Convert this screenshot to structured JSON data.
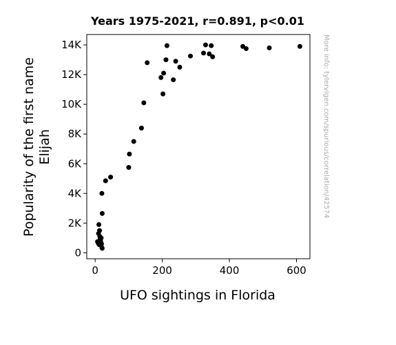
{
  "chart_data": {
    "type": "scatter",
    "title": "Years 1975-2021, r=0.891, p<0.01",
    "xlabel": "UFO sightings in Florida",
    "ylabel_lines": [
      "Popularity of the first name",
      "Elijah"
    ],
    "side_note": "More info: tylervigen.com/spurious/correlation/42574",
    "xlim": [
      -25,
      640
    ],
    "ylim": [
      -400,
      14700
    ],
    "xticks": [
      0,
      200,
      400,
      600
    ],
    "xtick_labels": [
      "0",
      "200",
      "400",
      "600"
    ],
    "yticks": [
      0,
      2000,
      4000,
      6000,
      8000,
      10000,
      12000,
      14000
    ],
    "ytick_labels": [
      "0",
      "2K",
      "4K",
      "6K",
      "8K",
      "10K",
      "12K",
      "14K"
    ],
    "marker_color": "#000000",
    "grid": false,
    "points": [
      {
        "x": 7,
        "y": 750
      },
      {
        "x": 9,
        "y": 650
      },
      {
        "x": 10,
        "y": 1300
      },
      {
        "x": 11,
        "y": 1900
      },
      {
        "x": 12,
        "y": 550
      },
      {
        "x": 13,
        "y": 1500
      },
      {
        "x": 14,
        "y": 1100
      },
      {
        "x": 15,
        "y": 950
      },
      {
        "x": 16,
        "y": 800
      },
      {
        "x": 17,
        "y": 700
      },
      {
        "x": 18,
        "y": 1000
      },
      {
        "x": 19,
        "y": 600
      },
      {
        "x": 20,
        "y": 350
      },
      {
        "x": 21,
        "y": 300
      },
      {
        "x": 20,
        "y": 4000
      },
      {
        "x": 21,
        "y": 2650
      },
      {
        "x": 31,
        "y": 4850
      },
      {
        "x": 46,
        "y": 5100
      },
      {
        "x": 100,
        "y": 5750
      },
      {
        "x": 102,
        "y": 6650
      },
      {
        "x": 115,
        "y": 7500
      },
      {
        "x": 138,
        "y": 8400
      },
      {
        "x": 145,
        "y": 10100
      },
      {
        "x": 155,
        "y": 12800
      },
      {
        "x": 196,
        "y": 11800
      },
      {
        "x": 202,
        "y": 10700
      },
      {
        "x": 204,
        "y": 12100
      },
      {
        "x": 211,
        "y": 13000
      },
      {
        "x": 214,
        "y": 13950
      },
      {
        "x": 233,
        "y": 11650
      },
      {
        "x": 240,
        "y": 12900
      },
      {
        "x": 252,
        "y": 12500
      },
      {
        "x": 284,
        "y": 13250
      },
      {
        "x": 323,
        "y": 13450
      },
      {
        "x": 329,
        "y": 14000
      },
      {
        "x": 340,
        "y": 13400
      },
      {
        "x": 346,
        "y": 13950
      },
      {
        "x": 350,
        "y": 13200
      },
      {
        "x": 440,
        "y": 13900
      },
      {
        "x": 450,
        "y": 13750
      },
      {
        "x": 519,
        "y": 13800
      },
      {
        "x": 610,
        "y": 13900
      }
    ]
  }
}
